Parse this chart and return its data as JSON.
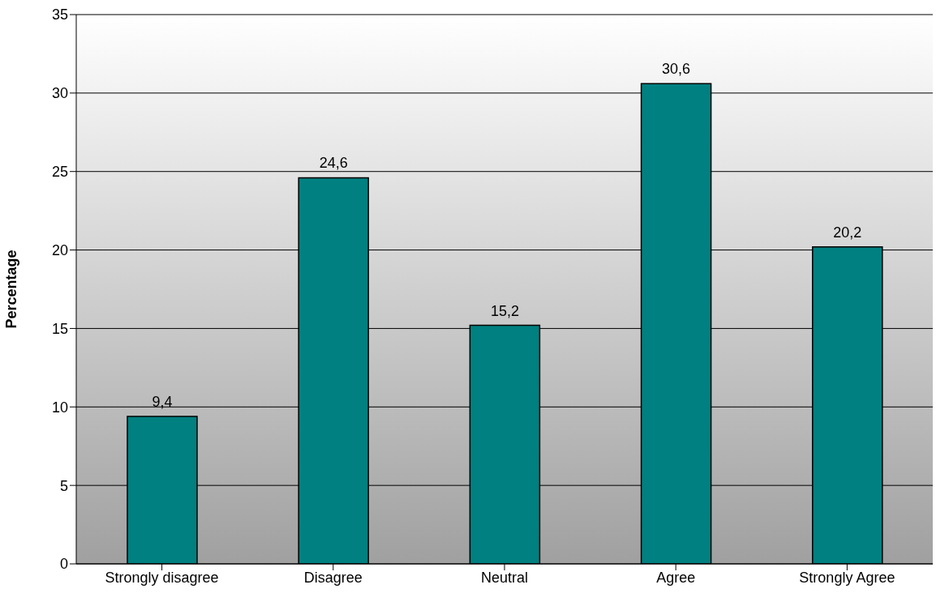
{
  "chart_data": {
    "type": "bar",
    "ylabel": "Percentage",
    "categories": [
      "Strongly disagree",
      "Disagree",
      "Neutral",
      "Agree",
      "Strongly Agree"
    ],
    "values": [
      9.4,
      24.6,
      15.2,
      30.6,
      20.2
    ],
    "value_labels": [
      "9,4",
      "24,6",
      "15,2",
      "30,6",
      "20,2"
    ],
    "color": "#008080",
    "ylim": [
      0,
      35
    ],
    "yticks": [
      0,
      5,
      10,
      15,
      20,
      25,
      30,
      35
    ],
    "grid": "y"
  }
}
